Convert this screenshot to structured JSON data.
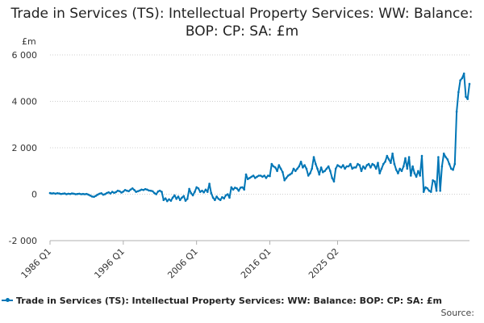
{
  "chart_data": {
    "type": "line",
    "title": "Trade in Services (TS): Intellectual Property Services: WW: Balance: BOP: CP: SA: £m",
    "unit": "£m",
    "xlabel": "",
    "ylabel": "£m",
    "ylim": [
      -2000,
      6000
    ],
    "y_ticks": [
      -2000,
      0,
      2000,
      4000,
      6000
    ],
    "y_tick_labels": [
      "-2 000",
      "0",
      "2 000",
      "4 000",
      "6 000"
    ],
    "x_ticks": [
      "1986 Q1",
      "1996 Q1",
      "2006 Q1",
      "2016 Q1",
      "2025 Q2"
    ],
    "grid": true,
    "legend_position": "bottom",
    "series": [
      {
        "name": "Trade in Services (TS): Intellectual Property Services: WW: Balance: BOP: CP: SA: £m",
        "color": "#0076b6",
        "start": "1986 Q1",
        "frequency": "quarterly",
        "values": [
          50,
          30,
          40,
          20,
          40,
          30,
          10,
          20,
          30,
          0,
          20,
          10,
          30,
          20,
          0,
          10,
          20,
          0,
          10,
          0,
          10,
          -20,
          -60,
          -100,
          -110,
          -70,
          -20,
          20,
          40,
          -20,
          0,
          50,
          80,
          30,
          100,
          60,
          90,
          150,
          130,
          70,
          110,
          180,
          150,
          130,
          200,
          250,
          180,
          100,
          130,
          160,
          200,
          180,
          220,
          200,
          160,
          150,
          130,
          50,
          0,
          120,
          150,
          100,
          -250,
          -180,
          -300,
          -220,
          -280,
          -150,
          -50,
          -200,
          -100,
          -250,
          -150,
          -80,
          -280,
          -200,
          230,
          50,
          -50,
          100,
          300,
          250,
          100,
          150,
          80,
          200,
          100,
          450,
          50,
          -150,
          -250,
          -100,
          -200,
          -250,
          -130,
          -180,
          -50,
          0,
          -150,
          300,
          200,
          280,
          250,
          150,
          280,
          300,
          200,
          850,
          650,
          700,
          750,
          800,
          700,
          750,
          800,
          800,
          750,
          800,
          700,
          800,
          780,
          1300,
          1200,
          1150,
          1000,
          1250,
          1100,
          950,
          600,
          700,
          800,
          850,
          900,
          1100,
          1000,
          1100,
          1200,
          1400,
          1150,
          1250,
          1100,
          800,
          900,
          1100,
          1600,
          1300,
          1100,
          850,
          1150,
          950,
          1000,
          1100,
          1200,
          1000,
          700,
          550,
          1100,
          1250,
          1200,
          1150,
          1250,
          1100,
          1200,
          1200,
          1300,
          1100,
          1150,
          1150,
          1300,
          1250,
          1000,
          1200,
          1100,
          1250,
          1300,
          1150,
          1300,
          1250,
          1100,
          1350,
          900,
          1100,
          1300,
          1400,
          1650,
          1500,
          1350,
          1750,
          1300,
          1050,
          900,
          1100,
          1000,
          1200,
          1550,
          1100,
          1600,
          800,
          1200,
          900,
          750,
          1000,
          800,
          1650,
          100,
          300,
          250,
          150,
          100,
          600,
          550,
          150,
          1600,
          150,
          1200,
          1750,
          1600,
          1500,
          1300,
          1100,
          1050,
          1300,
          3550,
          4400,
          4900,
          5000,
          5200,
          4200,
          4100,
          4750
        ]
      }
    ]
  },
  "footer": {
    "source_label": "Source:"
  }
}
